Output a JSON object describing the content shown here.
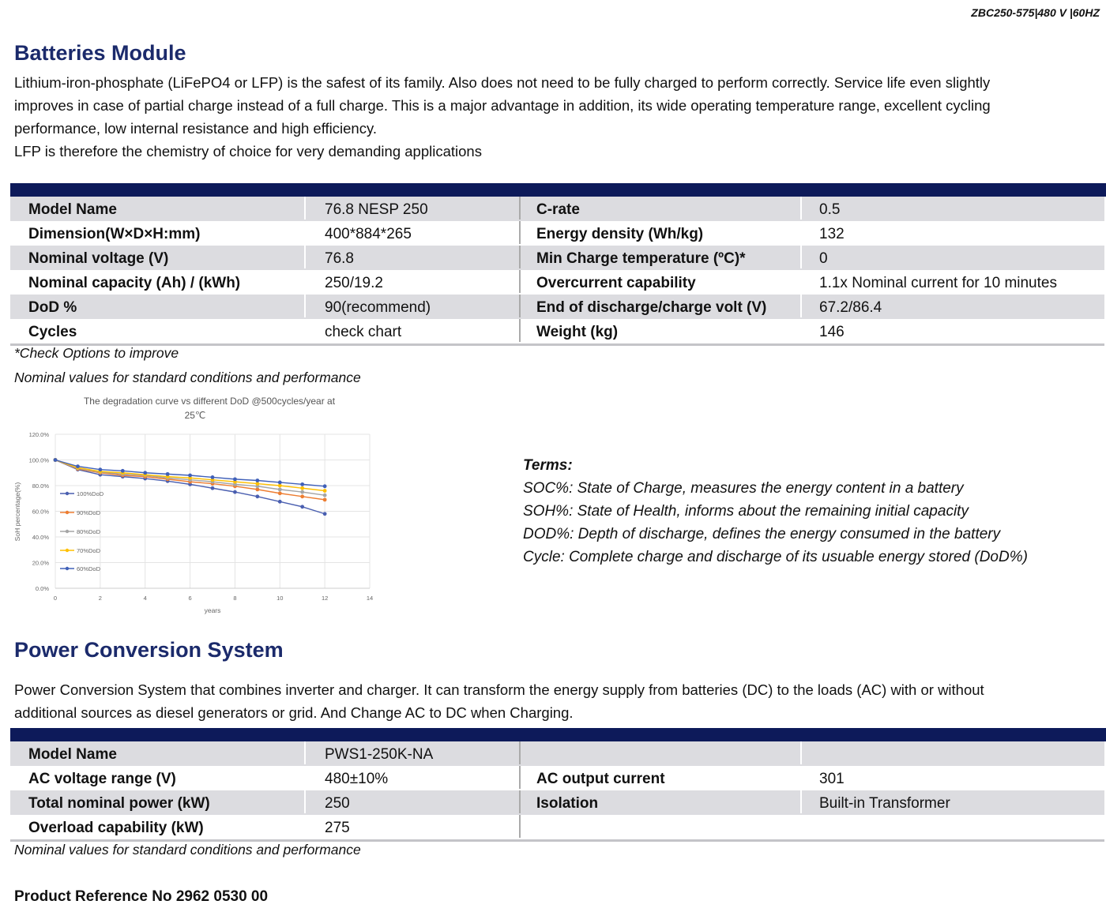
{
  "header": {
    "code": "ZBC250-575|480 V |60HZ"
  },
  "batteries": {
    "title": "Batteries Module",
    "paragraph": [
      "Lithium-iron-phosphate (LiFePO4 or LFP) is the safest of its family. Also does not need to be fully charged to perform correctly. Service life even slightly",
      "improves in case of partial charge instead of a full charge. This is a major advantage in addition, its wide operating temperature range, excellent cycling",
      "performance, low internal resistance and high efficiency.",
      "LFP is therefore the chemistry of choice for very demanding applications"
    ],
    "rows": [
      [
        "Model Name",
        "76.8 NESP 250",
        "C-rate",
        "0.5"
      ],
      [
        "Dimension(W×D×H:mm)",
        "400*884*265",
        "Energy density (Wh/kg)",
        "132"
      ],
      [
        "Nominal voltage (V)",
        "76.8",
        "Min Charge temperature (ºC)*",
        "0"
      ],
      [
        "Nominal capacity (Ah) / (kWh)",
        "250/19.2",
        "Overcurrent capability",
        "1.1x Nominal current for 10 minutes"
      ],
      [
        "DoD %",
        "90(recommend)",
        "End of discharge/charge volt (V)",
        "67.2/86.4"
      ],
      [
        "Cycles",
        "check chart",
        "Weight (kg)",
        "146"
      ]
    ],
    "footnote": "*Check Options to improve",
    "note": "Nominal values for standard conditions and performance"
  },
  "terms": {
    "title": "Terms:",
    "items": [
      "SOC%: State of Charge, measures the energy content in a battery",
      "SOH%: State of Health, informs about the remaining initial capacity",
      "DOD%: Depth of discharge, defines the energy consumed in the battery",
      "Cycle: Complete charge and discharge of its usuable energy stored (DoD%)"
    ]
  },
  "pcs": {
    "title": "Power Conversion System",
    "paragraph": [
      "Power Conversion System that combines inverter and charger. It can transform the energy supply from batteries (DC) to the loads (AC) with or without",
      "additional sources as diesel generators or grid. And Change AC to DC when Charging."
    ],
    "rows": [
      [
        "Model Name",
        "PWS1-250K-NA",
        "",
        ""
      ],
      [
        "AC voltage range (V)",
        "480±10%",
        "AC output current",
        "301"
      ],
      [
        "Total nominal power (kW)",
        "250",
        "Isolation",
        "Built-in Transformer"
      ],
      [
        "Overload capability (kW)",
        "275",
        "",
        ""
      ]
    ],
    "note": "Nominal values for standard conditions and performance"
  },
  "reference": "Product Reference No 2962 0530 00",
  "chart_data": {
    "type": "line",
    "title": "The degradation curve vs different DoD @500cycles/year at",
    "title2": "25℃",
    "xlabel": "years",
    "ylabel": "SoH percentage(%)",
    "xlim": [
      0,
      14
    ],
    "ylim": [
      0,
      120
    ],
    "xticks": [
      "0",
      "2",
      "4",
      "6",
      "8",
      "10",
      "12",
      "14"
    ],
    "yticks": [
      "0.0%",
      "20.0%",
      "40.0%",
      "60.0%",
      "80.0%",
      "100.0%",
      "120.0%"
    ],
    "x": [
      0,
      1,
      2,
      3,
      4,
      5,
      6,
      7,
      8,
      9,
      10,
      11,
      12
    ],
    "legend": "left",
    "series": [
      {
        "name": "100%DoD",
        "color": "#4a5fb0",
        "values": [
          100,
          92.5,
          88.5,
          87,
          85.5,
          83.5,
          81,
          78,
          75,
          71.5,
          67.5,
          63.5,
          58
        ]
      },
      {
        "name": "90%DoD",
        "color": "#ed7d31",
        "values": [
          100,
          93,
          90,
          88,
          87,
          85,
          83,
          81.5,
          79.5,
          77,
          74,
          71.5,
          69
        ]
      },
      {
        "name": "80%DoD",
        "color": "#a5a5a5",
        "values": [
          100,
          93.5,
          90.5,
          89,
          88,
          86,
          84.5,
          83,
          81,
          79.5,
          77,
          75,
          72.5
        ]
      },
      {
        "name": "70%DoD",
        "color": "#ffc000",
        "values": [
          100,
          94,
          91,
          90,
          88.5,
          87,
          86,
          84.5,
          83,
          81.5,
          80,
          78,
          76
        ]
      },
      {
        "name": "60%DoD",
        "color": "#4060b8",
        "values": [
          100,
          95,
          92.5,
          91.5,
          90,
          89,
          88,
          86.5,
          85,
          84,
          82.5,
          81,
          79.5
        ]
      }
    ]
  }
}
